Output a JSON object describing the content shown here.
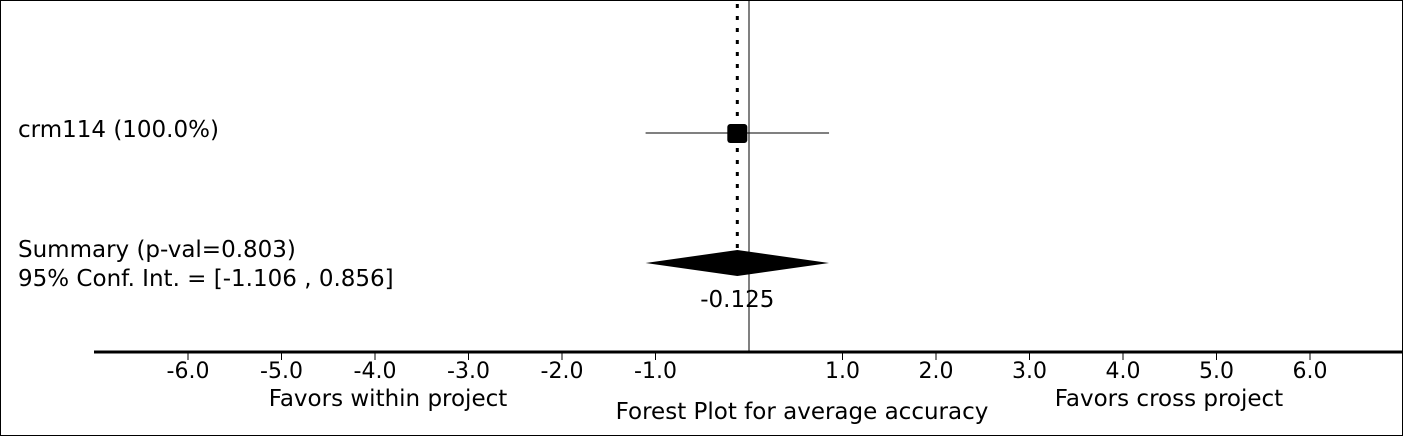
{
  "chart_data": {
    "type": "forest",
    "title": "Forest Plot for average accuracy",
    "xlabel_left": "Favors within project",
    "xlabel_right": "Favors cross project",
    "xlim": [
      -7.0,
      7.0
    ],
    "x_ticks": [
      -6,
      -5,
      -4,
      -3,
      -2,
      -1,
      1,
      2,
      3,
      4,
      5,
      6
    ],
    "x_tick_labels": [
      "-6.0",
      "-5.0",
      "-4.0",
      "-3.0",
      "-2.0",
      "-1.0",
      "1.0",
      "2.0",
      "3.0",
      "4.0",
      "5.0",
      "6.0"
    ],
    "null_line": 0,
    "studies": [
      {
        "label": "crm114 (100.0%)",
        "weight": 100.0,
        "estimate": -0.125,
        "ci": [
          -1.106,
          0.856
        ]
      }
    ],
    "summary": {
      "label": "Summary (p-val=0.803)",
      "ci_label": "95% Conf. Int. = [-1.106 , 0.856]",
      "estimate": -0.125,
      "estimate_label": "-0.125",
      "ci": [
        -1.106,
        0.856
      ],
      "p_value": 0.803
    }
  }
}
